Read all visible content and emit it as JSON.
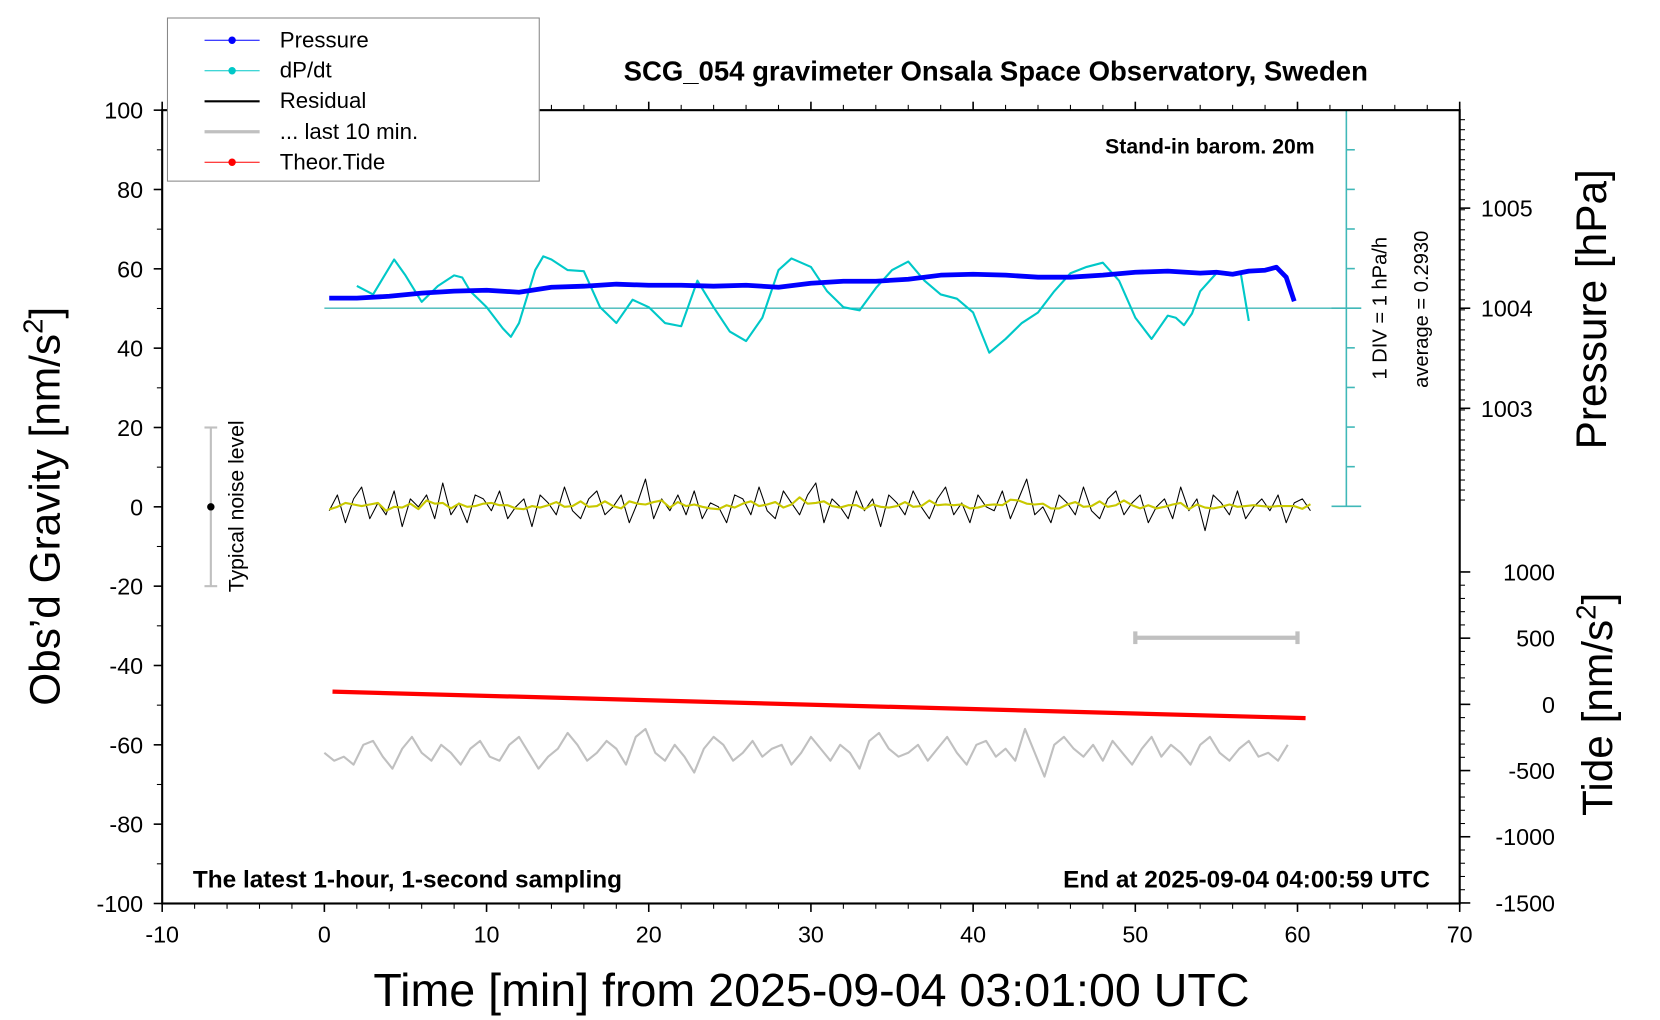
{
  "chart_data": {
    "type": "line",
    "title": "SCG_054 gravimeter Onsala Space Observatory, Sweden",
    "subtitle_right": "Stand-in barom. 20m",
    "note_left": "The latest 1-hour, 1-second sampling",
    "note_right": "End at 2025-09-04 04:00:59 UTC",
    "xlabel": "Time [min] from 2025-09-04 03:01:00 UTC",
    "ylabel_left": "Obs’d Gravity [nm/s",
    "ylabel_left_sup": "2",
    "ylabel_left_end": "]",
    "ylabel_right_top": "Pressure [hPa]",
    "ylabel_right_bottom": "Tide [nm/s",
    "ylabel_right_bottom_sup": "2",
    "ylabel_right_bottom_end": "]",
    "xlim": [
      -10,
      70
    ],
    "ylim_left": [
      -100,
      100
    ],
    "xticks": [
      "-10",
      "0",
      "10",
      "20",
      "30",
      "40",
      "50",
      "60",
      "70"
    ],
    "yticks_left": [
      "100",
      "80",
      "60",
      "40",
      "20",
      "0",
      "-20",
      "-40",
      "-60",
      "-80",
      "-100"
    ],
    "yticks_pressure": [
      "1005",
      "1004",
      "1003"
    ],
    "yticks_tide": [
      "1000",
      "500",
      "0",
      "-500",
      "-1000",
      "-1500"
    ],
    "grid": false,
    "legend_position": "top-left",
    "legend": [
      {
        "label": "Pressure",
        "color": "#0000ff",
        "marker": true
      },
      {
        "label": "dP/dt",
        "color": "#00c8c8",
        "marker": true
      },
      {
        "label": "Residual",
        "color": "#000000",
        "marker": false
      },
      {
        "label": "... last 10 min.",
        "color": "#c0c0c0",
        "marker": false
      },
      {
        "label": "Theor.Tide",
        "color": "#ff0000",
        "marker": true
      }
    ],
    "dpdt_scale_label": "1 DIV = 1 hPa/h",
    "dpdt_average_label": "average = 0.2930",
    "dpdt_average": 0.293,
    "noise_label": "Typical noise level",
    "noise_level": {
      "t": -7,
      "center": 0,
      "half_range": 20
    },
    "last10_bar": {
      "t_from": 50,
      "t_to": 60,
      "y": -33
    },
    "series": {
      "pressure": {
        "color": "#0000ff",
        "unit": "hPa",
        "t": [
          0.3,
          2,
          4,
          6,
          8,
          10,
          12,
          14,
          16,
          18,
          20,
          22,
          24,
          26,
          28,
          30,
          32,
          34,
          36,
          38,
          40,
          42,
          44,
          46,
          48,
          50,
          52,
          54,
          55,
          56,
          57,
          58,
          58.7,
          59.3,
          59.8
        ],
        "values": [
          1004.1,
          1004.1,
          1004.12,
          1004.15,
          1004.17,
          1004.18,
          1004.16,
          1004.21,
          1004.22,
          1004.24,
          1004.23,
          1004.23,
          1004.22,
          1004.23,
          1004.21,
          1004.25,
          1004.27,
          1004.27,
          1004.29,
          1004.33,
          1004.34,
          1004.33,
          1004.31,
          1004.31,
          1004.33,
          1004.36,
          1004.37,
          1004.35,
          1004.36,
          1004.34,
          1004.37,
          1004.38,
          1004.41,
          1004.31,
          1004.07
        ]
      },
      "dpdt": {
        "color": "#00c8c8",
        "unit": "hPa/h",
        "t": [
          2,
          3,
          4.3,
          5,
          6,
          7,
          8,
          8.5,
          9,
          10,
          11,
          11.5,
          12,
          13,
          13.5,
          14,
          15,
          16,
          17,
          18,
          19,
          20,
          21,
          22,
          23,
          24,
          25,
          26,
          27,
          28,
          28.8,
          30,
          31,
          32,
          33,
          34,
          35,
          36,
          37,
          38,
          39,
          40,
          41,
          42,
          43,
          44,
          45,
          46,
          47,
          48,
          49,
          50,
          51,
          52,
          52.5,
          53,
          53.5,
          54,
          55,
          56,
          56.5,
          57
        ],
        "values": [
          0.853,
          0.64,
          1.52,
          1.12,
          0.453,
          0.853,
          1.12,
          1.066,
          0.72,
          0.32,
          -0.214,
          -0.427,
          -0.08,
          1.253,
          1.6,
          1.52,
          1.253,
          1.226,
          0.32,
          -0.08,
          0.506,
          0.32,
          -0.08,
          -0.16,
          0.986,
          0.32,
          -0.294,
          -0.534,
          0.053,
          1.253,
          1.546,
          1.333,
          0.72,
          0.32,
          0.24,
          0.8,
          1.253,
          1.466,
          0.986,
          0.64,
          0.533,
          0.186,
          -0.827,
          -0.48,
          -0.08,
          0.186,
          0.72,
          1.173,
          1.333,
          1.44,
          0.986,
          0.053,
          -0.48,
          0.106,
          0.053,
          -0.134,
          0.16,
          0.72,
          1.173,
          1.12,
          1.173,
          -0.027
        ]
      },
      "residual": {
        "color": "#000000",
        "smoothed_color": "#c8c800",
        "unit": "nm/s2",
        "t_start": 0.3,
        "t_step": 0.5,
        "values": [
          -1,
          3,
          -4,
          2,
          5,
          -3,
          1,
          -2,
          4,
          -5,
          2,
          0,
          3,
          -3,
          6,
          -2,
          1,
          -4,
          3,
          2,
          -1,
          4,
          -3,
          0,
          2,
          -5,
          3,
          1,
          -2,
          5,
          -1,
          -3,
          2,
          4,
          -2,
          0,
          3,
          -4,
          1,
          7,
          -3,
          2,
          -1,
          3,
          -2,
          4,
          -3,
          1,
          0,
          -4,
          3,
          2,
          -2,
          5,
          -1,
          -3,
          4,
          1,
          -2,
          3,
          6,
          -4,
          2,
          0,
          -3,
          4,
          -1,
          2,
          -5,
          3,
          1,
          -2,
          4,
          0,
          -3,
          2,
          5,
          -2,
          1,
          -4,
          3,
          0,
          -1,
          4,
          -3,
          2,
          7,
          -2,
          0,
          -4,
          3,
          1,
          -2,
          5,
          -1,
          -3,
          2,
          4,
          -2,
          1,
          3,
          -4,
          0,
          2,
          -3,
          5,
          -1,
          2,
          -6,
          3,
          1,
          -2,
          4,
          -3,
          0,
          2,
          -1,
          3,
          -4,
          1,
          2,
          -1
        ]
      },
      "last10": {
        "color": "#c0c0c0",
        "unit": "nm/s2",
        "t_start": 0,
        "t_step": 0.6,
        "values": [
          -62,
          -64,
          -63,
          -65,
          -60,
          -59,
          -63,
          -66,
          -61,
          -58,
          -62,
          -64,
          -60,
          -62,
          -65,
          -61,
          -59,
          -63,
          -64,
          -60,
          -58,
          -62,
          -66,
          -63,
          -61,
          -57,
          -60,
          -64,
          -62,
          -59,
          -61,
          -65,
          -58,
          -56,
          -62,
          -64,
          -60,
          -63,
          -67,
          -61,
          -58,
          -60,
          -64,
          -62,
          -59,
          -63,
          -61,
          -60,
          -65,
          -62,
          -58,
          -61,
          -64,
          -60,
          -62,
          -66,
          -59,
          -57,
          -61,
          -63,
          -62,
          -60,
          -64,
          -61,
          -58,
          -62,
          -65,
          -60,
          -59,
          -63,
          -61,
          -64,
          -56,
          -62,
          -68,
          -60,
          -58,
          -61,
          -63,
          -60,
          -64,
          -59,
          -62,
          -65,
          -61,
          -58,
          -63,
          -60,
          -62,
          -65,
          -60,
          -58,
          -62,
          -64,
          -61,
          -59,
          -63,
          -62,
          -64,
          -60
        ]
      },
      "tide": {
        "color": "#ff0000",
        "unit": "nm/s2",
        "t": [
          0.5,
          60.5
        ],
        "values": [
          96,
          -104
        ]
      }
    }
  }
}
